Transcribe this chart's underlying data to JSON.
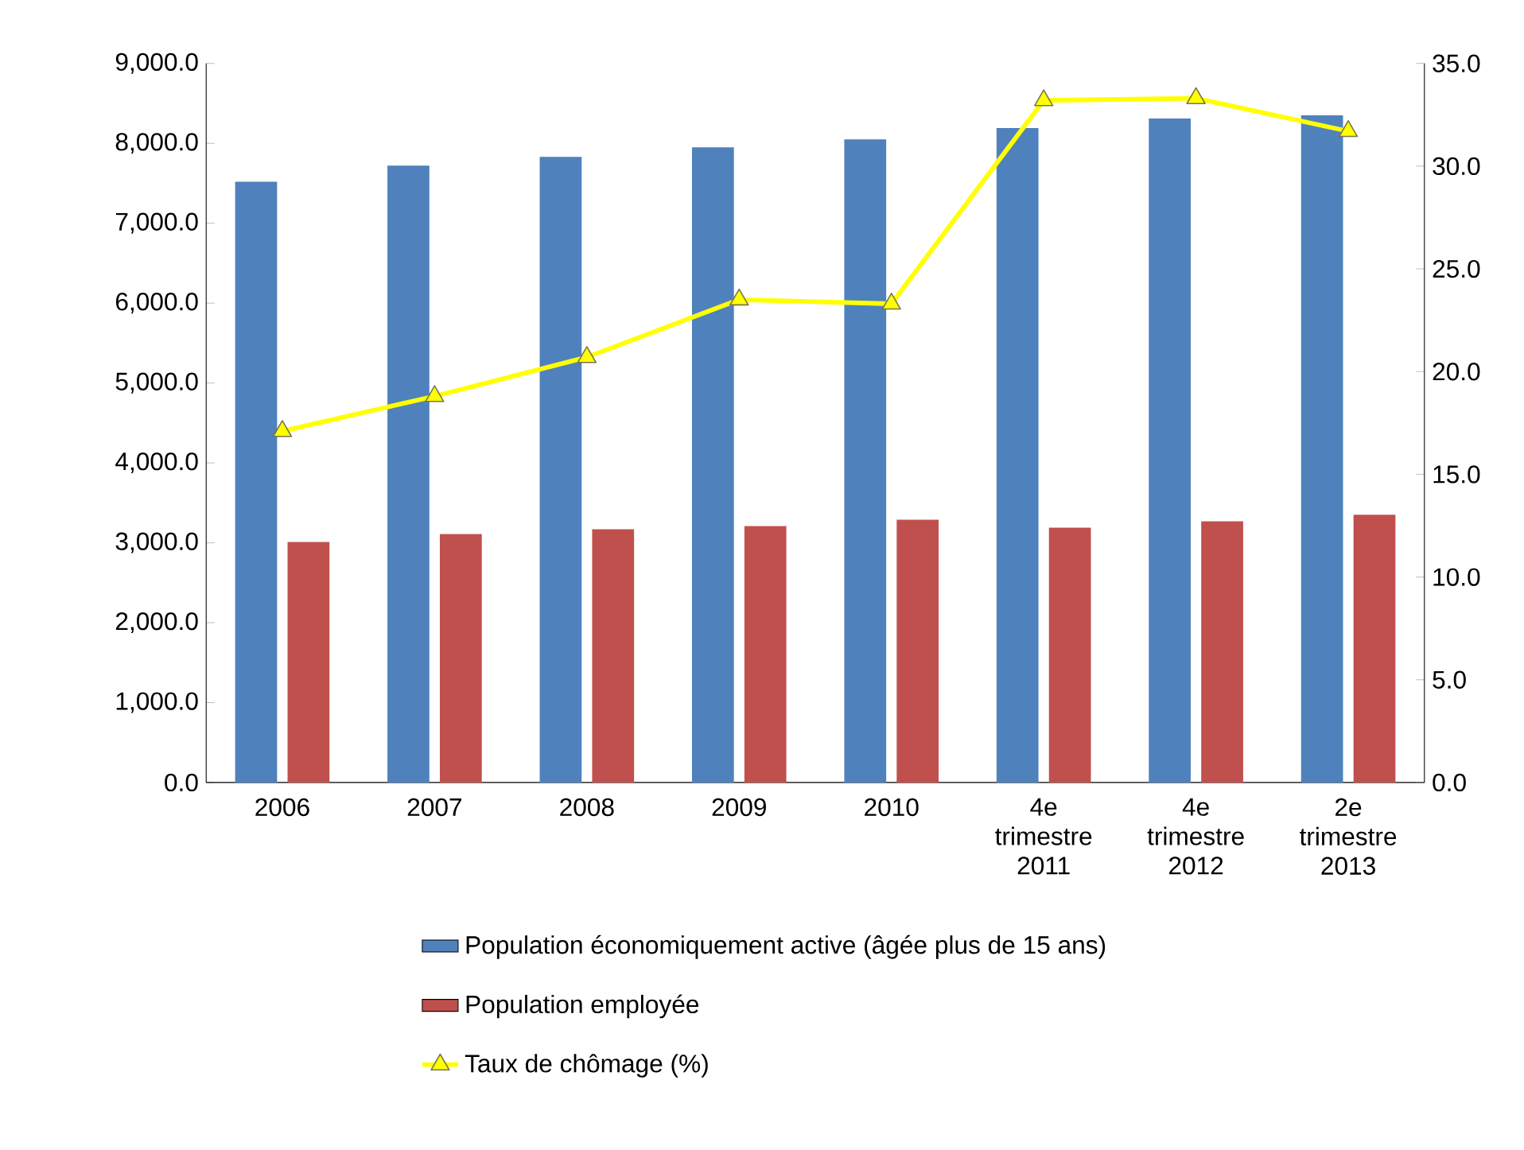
{
  "chart_data": {
    "type": "bar",
    "categories": [
      "2006",
      "2007",
      "2008",
      "2009",
      "2010",
      "4e trimestre 2011",
      "4e trimestre 2012",
      "2e trimestre 2013"
    ],
    "series": [
      {
        "name": "Population économiquement active (âgée plus de 15 ans)",
        "color": "#4f81bd",
        "values": [
          7520,
          7720,
          7830,
          7950,
          8050,
          8190,
          8310,
          8350
        ]
      },
      {
        "name": "Population employée",
        "color": "#c0504d",
        "values": [
          3010,
          3110,
          3170,
          3210,
          3290,
          3190,
          3270,
          3350
        ]
      },
      {
        "name": "Taux de chômage (%)",
        "type": "line",
        "axis": "y2",
        "color": "#ffff00",
        "marker": "triangle",
        "values": [
          17.1,
          18.8,
          20.7,
          23.5,
          23.3,
          33.2,
          33.3,
          31.7
        ]
      }
    ],
    "ylim": [
      0,
      9000
    ],
    "yticks": [
      {
        "value": 0,
        "label": "0.0"
      },
      {
        "value": 1000,
        "label": "1,000.0"
      },
      {
        "value": 2000,
        "label": "2,000.0"
      },
      {
        "value": 3000,
        "label": "3,000.0"
      },
      {
        "value": 4000,
        "label": "4,000.0"
      },
      {
        "value": 5000,
        "label": "5,000.0"
      },
      {
        "value": 6000,
        "label": "6,000.0"
      },
      {
        "value": 7000,
        "label": "7,000.0"
      },
      {
        "value": 8000,
        "label": "8,000.0"
      },
      {
        "value": 9000,
        "label": "9,000.0"
      }
    ],
    "y2lim": [
      0,
      35
    ],
    "y2ticks": [
      {
        "value": 0,
        "label": "0.0"
      },
      {
        "value": 5,
        "label": "5.0"
      },
      {
        "value": 10,
        "label": "10.0"
      },
      {
        "value": 15,
        "label": "15.0"
      },
      {
        "value": 20,
        "label": "20.0"
      },
      {
        "value": 25,
        "label": "25.0"
      },
      {
        "value": 30,
        "label": "30.0"
      },
      {
        "value": 35,
        "label": "35.0"
      }
    ],
    "legend": "bottom"
  }
}
